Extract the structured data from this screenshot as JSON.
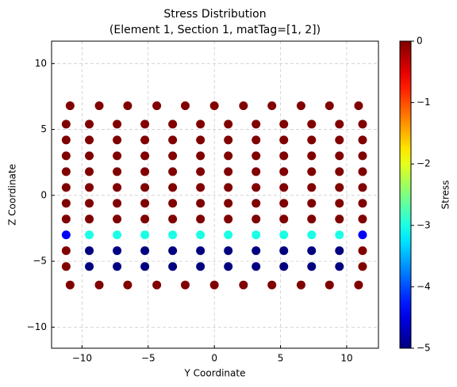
{
  "chart_data": {
    "type": "scatter",
    "title": "Stress Distribution",
    "subtitle": "(Element 1, Section 1, matTag=[1, 2])",
    "xlabel": "Y Coordinate",
    "ylabel": "Z Coordinate",
    "colorbar_label": "Stress",
    "colormap": "jet",
    "clim": [
      -5,
      0
    ],
    "cticks": [
      0,
      {
        "value": -1,
        "label": "−1"
      },
      {
        "value": -2,
        "label": "−2"
      },
      {
        "value": -3,
        "label": "−3"
      },
      {
        "value": -4,
        "label": "−4"
      },
      {
        "value": -5,
        "label": "−5"
      }
    ],
    "xlim": [
      -12.3,
      12.4
    ],
    "ylim": [
      -11.6,
      11.7
    ],
    "xticks": [
      {
        "value": -10,
        "label": "−10"
      },
      {
        "value": -5,
        "label": "−5"
      },
      0,
      5,
      10
    ],
    "yticks": [
      {
        "value": -10,
        "label": "−10"
      },
      {
        "value": -5,
        "label": "−5"
      },
      0,
      5,
      10
    ],
    "grid": true,
    "x": [
      -10.9,
      -8.7,
      -6.55,
      -4.35,
      -2.2,
      0,
      2.2,
      4.35,
      6.55,
      8.7,
      10.9,
      -11.2,
      -9.45,
      -7.35,
      -5.25,
      -3.15,
      -1.05,
      1.05,
      3.15,
      5.25,
      7.35,
      9.45,
      11.2,
      -11.2,
      -9.45,
      -7.35,
      -5.25,
      -3.15,
      -1.05,
      1.05,
      3.15,
      5.25,
      7.35,
      9.45,
      11.2,
      -11.2,
      -9.45,
      -7.35,
      -5.25,
      -3.15,
      -1.05,
      1.05,
      3.15,
      5.25,
      7.35,
      9.45,
      11.2,
      -11.2,
      -9.45,
      -7.35,
      -5.25,
      -3.15,
      -1.05,
      1.05,
      3.15,
      5.25,
      7.35,
      9.45,
      11.2,
      -11.2,
      -9.45,
      -7.35,
      -5.25,
      -3.15,
      -1.05,
      1.05,
      3.15,
      5.25,
      7.35,
      9.45,
      11.2,
      -11.2,
      -9.45,
      -7.35,
      -5.25,
      -3.15,
      -1.05,
      1.05,
      3.15,
      5.25,
      7.35,
      9.45,
      11.2,
      -11.2,
      -9.45,
      -7.35,
      -5.25,
      -3.15,
      -1.05,
      1.05,
      3.15,
      5.25,
      7.35,
      9.45,
      11.2,
      -11.2,
      -9.45,
      -7.35,
      -5.25,
      -3.15,
      -1.05,
      1.05,
      3.15,
      5.25,
      7.35,
      9.45,
      11.2,
      -11.2,
      -9.45,
      -7.35,
      -5.25,
      -3.15,
      -1.05,
      1.05,
      3.15,
      5.25,
      7.35,
      9.45,
      11.2,
      -11.2,
      -9.45,
      -7.35,
      -5.25,
      -3.15,
      -1.05,
      1.05,
      3.15,
      5.25,
      7.35,
      9.45,
      11.2,
      -10.9,
      -8.7,
      -6.55,
      -4.35,
      -2.2,
      0,
      2.2,
      4.35,
      6.55,
      8.7,
      10.9
    ],
    "y": [
      6.8,
      6.8,
      6.8,
      6.8,
      6.8,
      6.8,
      6.8,
      6.8,
      6.8,
      6.8,
      6.8,
      5.4,
      5.4,
      5.4,
      5.4,
      5.4,
      5.4,
      5.4,
      5.4,
      5.4,
      5.4,
      5.4,
      5.4,
      4.2,
      4.2,
      4.2,
      4.2,
      4.2,
      4.2,
      4.2,
      4.2,
      4.2,
      4.2,
      4.2,
      4.2,
      3,
      3,
      3,
      3,
      3,
      3,
      3,
      3,
      3,
      3,
      3,
      3,
      1.8,
      1.8,
      1.8,
      1.8,
      1.8,
      1.8,
      1.8,
      1.8,
      1.8,
      1.8,
      1.8,
      1.8,
      0.6,
      0.6,
      0.6,
      0.6,
      0.6,
      0.6,
      0.6,
      0.6,
      0.6,
      0.6,
      0.6,
      0.6,
      -0.6,
      -0.6,
      -0.6,
      -0.6,
      -0.6,
      -0.6,
      -0.6,
      -0.6,
      -0.6,
      -0.6,
      -0.6,
      -0.6,
      -1.8,
      -1.8,
      -1.8,
      -1.8,
      -1.8,
      -1.8,
      -1.8,
      -1.8,
      -1.8,
      -1.8,
      -1.8,
      -1.8,
      -3,
      -3,
      -3,
      -3,
      -3,
      -3,
      -3,
      -3,
      -3,
      -3,
      -3,
      -3,
      -4.2,
      -4.2,
      -4.2,
      -4.2,
      -4.2,
      -4.2,
      -4.2,
      -4.2,
      -4.2,
      -4.2,
      -4.2,
      -4.2,
      -5.4,
      -5.4,
      -5.4,
      -5.4,
      -5.4,
      -5.4,
      -5.4,
      -5.4,
      -5.4,
      -5.4,
      -5.4,
      -5.4,
      -6.8,
      -6.8,
      -6.8,
      -6.8,
      -6.8,
      -6.8,
      -6.8,
      -6.8,
      -6.8,
      -6.8,
      -6.8
    ],
    "c": [
      0,
      0,
      0,
      0,
      0,
      0,
      0,
      0,
      0,
      0,
      0,
      0,
      0,
      0,
      0,
      0,
      0,
      0,
      0,
      0,
      0,
      0,
      0,
      0,
      0,
      0,
      0,
      0,
      0,
      0,
      0,
      0,
      0,
      0,
      0,
      0,
      0,
      0,
      0,
      0,
      0,
      0,
      0,
      0,
      0,
      0,
      0,
      0,
      0,
      0,
      0,
      0,
      0,
      0,
      0,
      0,
      0,
      0,
      0,
      0,
      0,
      0,
      0,
      0,
      0,
      0,
      0,
      0,
      0,
      0,
      0,
      0,
      0,
      0,
      0,
      0,
      0,
      0,
      0,
      0,
      0,
      0,
      0,
      0,
      0,
      0,
      0,
      0,
      0,
      0,
      0,
      0,
      0,
      0,
      0,
      -4.4,
      -3,
      -3,
      -3,
      -3,
      -3,
      -3,
      -3,
      -3,
      -3,
      -3,
      -4.4,
      0,
      -5,
      -5,
      -5,
      -5,
      -5,
      -5,
      -5,
      -5,
      -5,
      -5,
      0,
      0,
      -5,
      -5,
      -5,
      -5,
      -5,
      -5,
      -5,
      -5,
      -5,
      -5,
      0,
      0,
      0,
      0,
      0,
      0,
      0,
      0,
      0,
      0,
      0,
      0
    ]
  }
}
